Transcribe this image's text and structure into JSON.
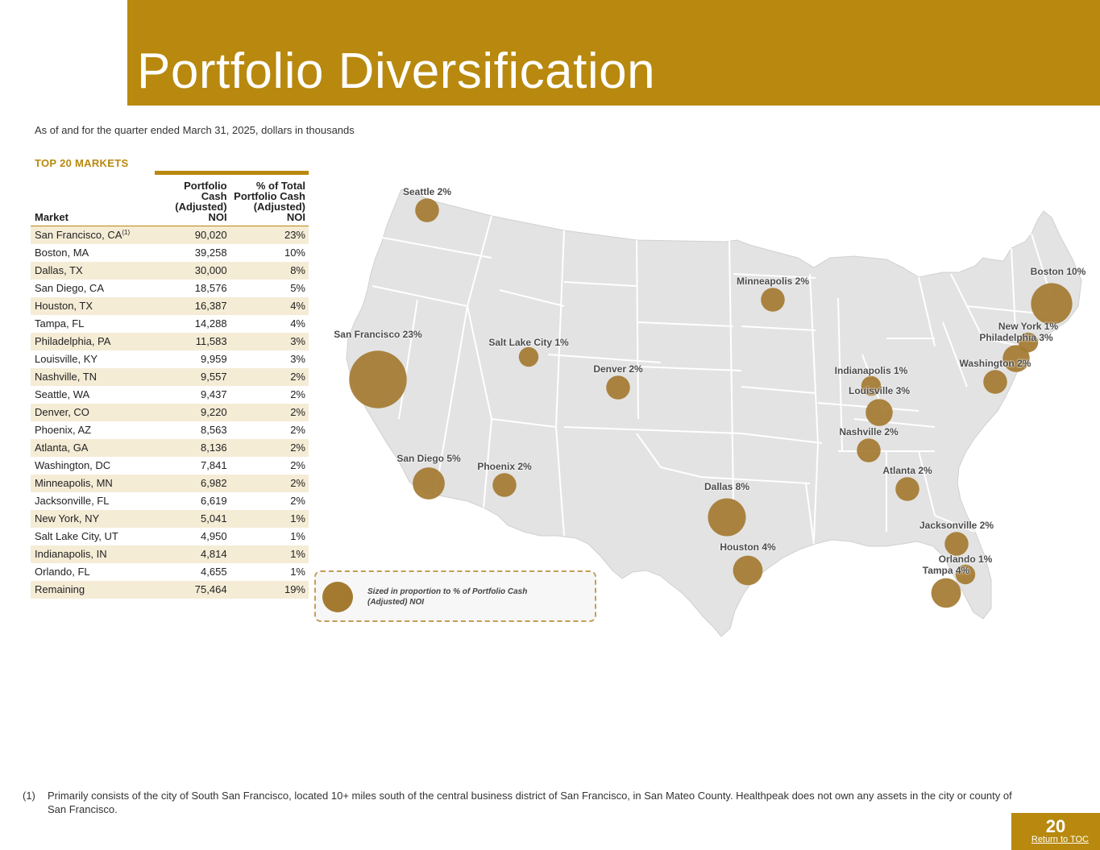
{
  "title": "Portfolio Diversification",
  "subtitle": "As of and for the quarter ended March 31, 2025, dollars in thousands",
  "section_title": "TOP 20 MARKETS",
  "table": {
    "headers": [
      "Market",
      "Portfolio Cash (Adjusted) NOI",
      "% of Total Portfolio Cash (Adjusted) NOI"
    ],
    "rows": [
      {
        "market": "San Francisco, CA",
        "sup": "(1)",
        "noi": "90,020",
        "pct": "23%"
      },
      {
        "market": "Boston, MA",
        "noi": "39,258",
        "pct": "10%"
      },
      {
        "market": "Dallas, TX",
        "noi": "30,000",
        "pct": "8%"
      },
      {
        "market": "San Diego, CA",
        "noi": "18,576",
        "pct": "5%"
      },
      {
        "market": "Houston, TX",
        "noi": "16,387",
        "pct": "4%"
      },
      {
        "market": "Tampa, FL",
        "noi": "14,288",
        "pct": "4%"
      },
      {
        "market": "Philadelphia, PA",
        "noi": "11,583",
        "pct": "3%"
      },
      {
        "market": "Louisville, KY",
        "noi": "9,959",
        "pct": "3%"
      },
      {
        "market": "Nashville, TN",
        "noi": "9,557",
        "pct": "2%"
      },
      {
        "market": "Seattle, WA",
        "noi": "9,437",
        "pct": "2%"
      },
      {
        "market": "Denver, CO",
        "noi": "9,220",
        "pct": "2%"
      },
      {
        "market": "Phoenix, AZ",
        "noi": "8,563",
        "pct": "2%"
      },
      {
        "market": "Atlanta, GA",
        "noi": "8,136",
        "pct": "2%"
      },
      {
        "market": "Washington, DC",
        "noi": "7,841",
        "pct": "2%"
      },
      {
        "market": "Minneapolis, MN",
        "noi": "6,982",
        "pct": "2%"
      },
      {
        "market": "Jacksonville, FL",
        "noi": "6,619",
        "pct": "2%"
      },
      {
        "market": "New York, NY",
        "noi": "5,041",
        "pct": "1%"
      },
      {
        "market": "Salt Lake City, UT",
        "noi": "4,950",
        "pct": "1%"
      },
      {
        "market": "Indianapolis, IN",
        "noi": "4,814",
        "pct": "1%"
      },
      {
        "market": "Orlando, FL",
        "noi": "4,655",
        "pct": "1%"
      },
      {
        "market": "Remaining",
        "noi": "75,464",
        "pct": "19%"
      }
    ]
  },
  "map": {
    "cities": [
      {
        "label": "Seattle 2%",
        "pct": 2
      },
      {
        "label": "San Francisco 23%",
        "pct": 23
      },
      {
        "label": "San Diego 5%",
        "pct": 5
      },
      {
        "label": "Phoenix 2%",
        "pct": 2
      },
      {
        "label": "Salt Lake City 1%",
        "pct": 1
      },
      {
        "label": "Denver 2%",
        "pct": 2
      },
      {
        "label": "Minneapolis 2%",
        "pct": 2
      },
      {
        "label": "Dallas 8%",
        "pct": 8
      },
      {
        "label": "Houston 4%",
        "pct": 4
      },
      {
        "label": "Indianapolis 1%",
        "pct": 1
      },
      {
        "label": "Louisville 3%",
        "pct": 3
      },
      {
        "label": "Nashville 2%",
        "pct": 2
      },
      {
        "label": "Atlanta 2%",
        "pct": 2
      },
      {
        "label": "Jacksonville 2%",
        "pct": 2
      },
      {
        "label": "Orlando 1%",
        "pct": 1
      },
      {
        "label": "Tampa 4%",
        "pct": 4
      },
      {
        "label": "Washington 2%",
        "pct": 2
      },
      {
        "label": "Philadelphia 3%",
        "pct": 3
      },
      {
        "label": "New York 1%",
        "pct": 1
      },
      {
        "label": "Boston 10%",
        "pct": 10
      }
    ],
    "legend": "Sized in proportion to % of Portfolio Cash (Adjusted) NOI",
    "land_color": "#e3e3e3",
    "border_color": "#ffffff",
    "bubble_color": "#a47a31"
  },
  "footnote": {
    "marker": "(1)",
    "text": "Primarily consists of the city of South San Francisco, located 10+ miles south of the central business district of San Francisco, in San Mateo County. Healthpeak does not own any assets in the city or county of San Francisco."
  },
  "page_number": "20",
  "toc_link": "Return to TOC",
  "colors": {
    "brand": "#b8890e",
    "row_stripe": "#f5ecd6"
  }
}
